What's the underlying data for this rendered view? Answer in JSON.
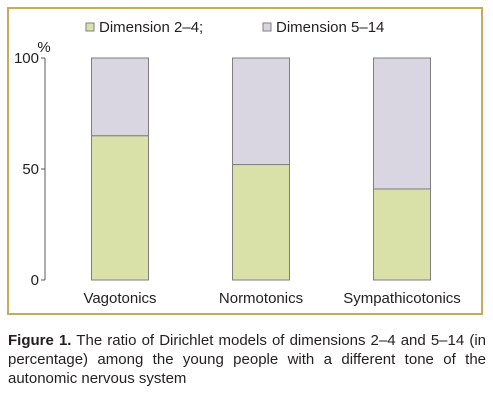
{
  "chart_data": {
    "type": "bar",
    "stacked": true,
    "categories": [
      "Vagotonics",
      "Normotonics",
      "Sympathicotonics"
    ],
    "series": [
      {
        "name": "Dimension 2–4;",
        "values": [
          65,
          52,
          41
        ],
        "color": "#d9e1a8"
      },
      {
        "name": "Dimension 5–14",
        "values": [
          35,
          48,
          59
        ],
        "color": "#d9d5e1"
      }
    ],
    "ylabel": "%",
    "ylim": [
      0,
      100
    ],
    "yticks": [
      0,
      50,
      100
    ],
    "grid": false,
    "legend_position": "top"
  },
  "caption": {
    "label": "Figure 1.",
    "text": " The ratio of Dirichlet models of dimensions 2–4 and 5–14 (in percentage) among the young people with a different tone of the autonomic nervous system"
  },
  "colors": {
    "frame": "#c9a95a",
    "bar_stroke": "#7f7f7f",
    "axis": "#595959"
  }
}
